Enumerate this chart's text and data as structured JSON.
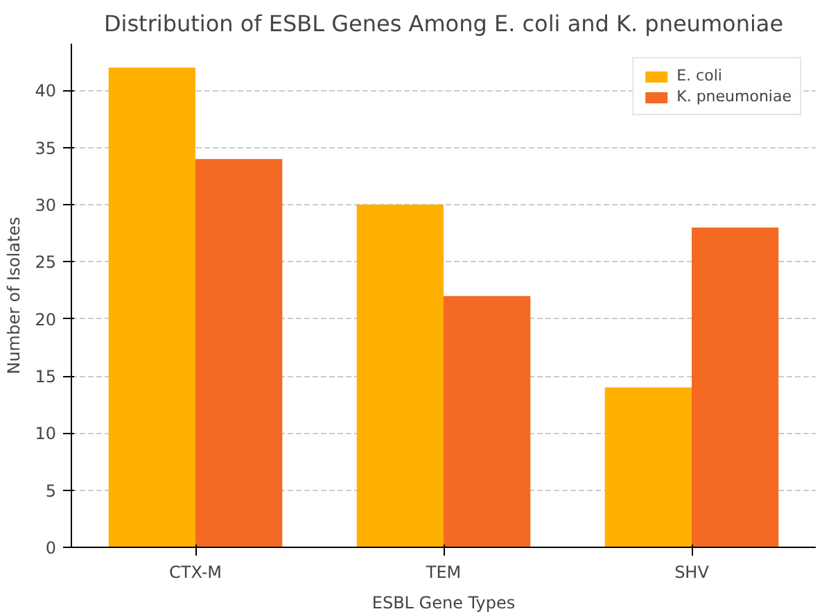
{
  "chart_data": {
    "type": "bar",
    "title": "Distribution of ESBL Genes Among E. coli and K. pneumoniae",
    "xlabel": "ESBL Gene Types",
    "ylabel": "Number of Isolates",
    "categories": [
      "CTX-M",
      "TEM",
      "SHV"
    ],
    "series": [
      {
        "name": "E. coli",
        "color": "#ffb000",
        "values": [
          42,
          30,
          14
        ]
      },
      {
        "name": "K. pneumoniae",
        "color": "#f46a24",
        "values": [
          34,
          22,
          28
        ]
      }
    ],
    "ylim": [
      0,
      44.1
    ],
    "yticks": [
      0,
      5,
      10,
      15,
      20,
      25,
      30,
      35,
      40
    ],
    "grid": "y",
    "legend": "top right"
  }
}
